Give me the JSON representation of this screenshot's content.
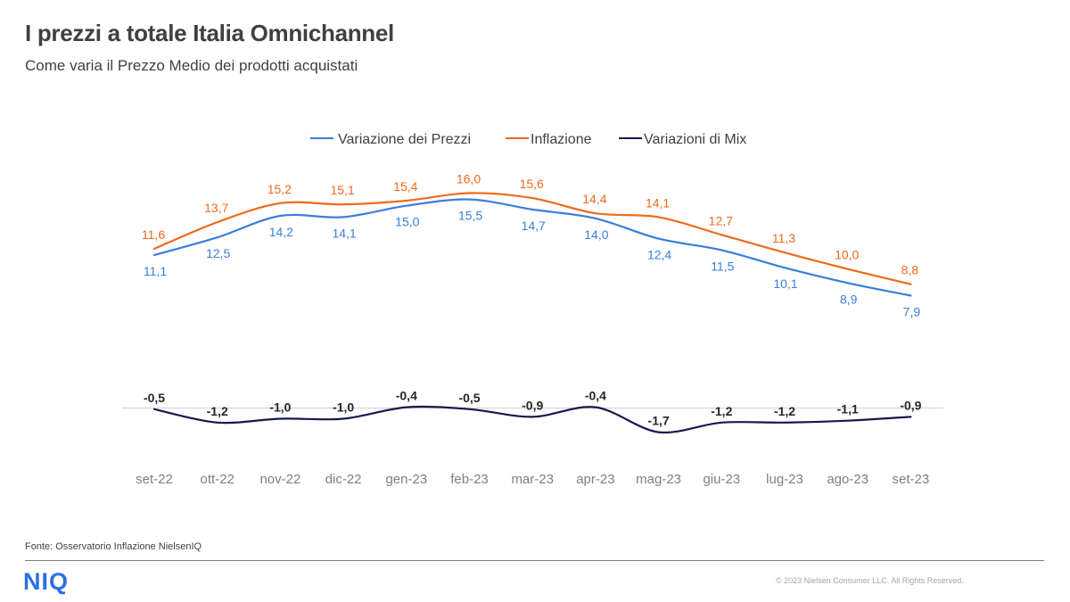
{
  "title": "I prezzi a totale Italia Omnichannel",
  "subtitle": "Come varia il Prezzo Medio dei prodotti acquistati",
  "source": "Fonte: Osservatorio Inflazione NielsenIQ",
  "logo": "NIQ",
  "copyright": "© 2023 Nielsen Consumer LLC. All Rights Reserved.",
  "chart_data": {
    "type": "line",
    "title": "",
    "xlabel": "",
    "ylabel": "",
    "categories": [
      "set-22",
      "ott-22",
      "nov-22",
      "dic-22",
      "gen-23",
      "feb-23",
      "mar-23",
      "apr-23",
      "mag-23",
      "giu-23",
      "lug-23",
      "ago-23",
      "set-23"
    ],
    "series": [
      {
        "name": "Variazione dei Prezzi",
        "color": "#3b7ddd",
        "values": [
          11.1,
          12.5,
          14.2,
          14.1,
          15.0,
          15.5,
          14.7,
          14.0,
          12.4,
          11.5,
          10.1,
          8.9,
          7.9
        ],
        "labels": [
          "11,1",
          "12,5",
          "14,2",
          "14,1",
          "15,0",
          "15,5",
          "14,7",
          "14,0",
          "12,4",
          "11,5",
          "10,1",
          "8,9",
          "7,9"
        ]
      },
      {
        "name": "Inflazione",
        "color": "#ef6a1c",
        "values": [
          11.6,
          13.7,
          15.2,
          15.1,
          15.4,
          16.0,
          15.6,
          14.4,
          14.1,
          12.7,
          11.3,
          10.0,
          8.8
        ],
        "labels": [
          "11,6",
          "13,7",
          "15,2",
          "15,1",
          "15,4",
          "16,0",
          "15,6",
          "14,4",
          "14,1",
          "12,7",
          "11,3",
          "10,0",
          "8,8"
        ]
      },
      {
        "name": "Variazioni di Mix",
        "color": "#14194f",
        "values": [
          -0.5,
          -1.2,
          -1.0,
          -1.0,
          -0.4,
          -0.5,
          -0.9,
          -0.4,
          -1.7,
          -1.2,
          -1.2,
          -1.1,
          -0.9
        ],
        "labels": [
          "-0,5",
          "-1,2",
          "-1,0",
          "-1,0",
          "-0,4",
          "-0,5",
          "-0,9",
          "-0,4",
          "-1,7",
          "-1,2",
          "-1,2",
          "-1,1",
          "-0,9"
        ]
      }
    ],
    "legend_position": "top",
    "grid": false,
    "zero_line": true,
    "data_labels": true
  }
}
